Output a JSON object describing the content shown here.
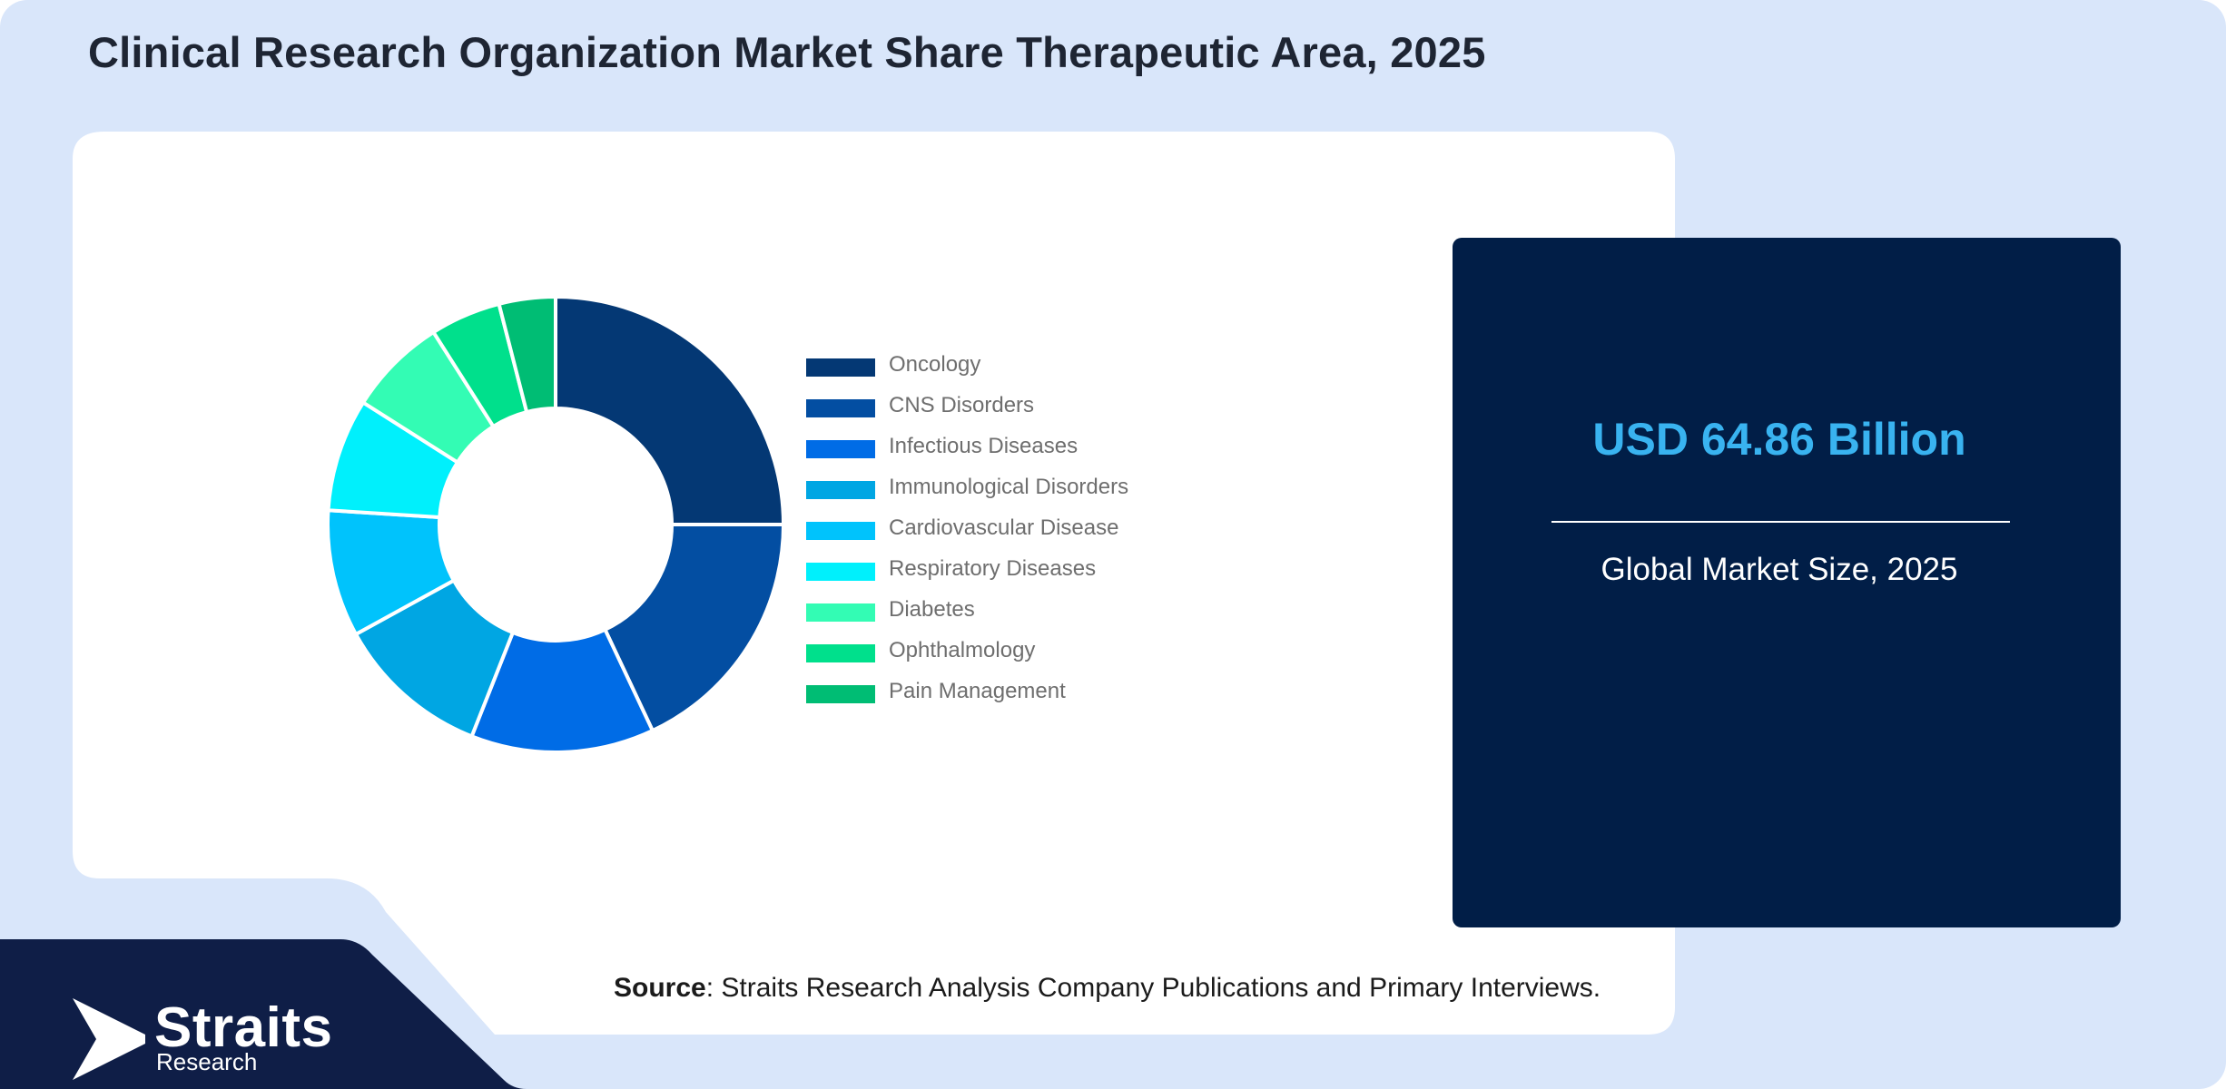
{
  "title": "Clinical Research Organization Market Share Therapeutic Area, 2025",
  "market": {
    "value": "USD 64.86 Billion",
    "caption": "Global Market Size, 2025"
  },
  "source": {
    "label": "Source",
    "text": ": Straits Research Analysis Company Publications and Primary Interviews."
  },
  "brand": {
    "name": "Straits",
    "sub": "Research"
  },
  "colors": {
    "page_background": "#d9e6fa",
    "panel": "#ffffff",
    "market_box": "#011e47",
    "footer": "#0f1e47",
    "accent_value": "#39b3f0"
  },
  "chart_data": {
    "type": "pie",
    "style": "donut",
    "legend_position": "right",
    "categories": [
      "Oncology",
      "CNS Disorders",
      "Infectious Diseases",
      "Immunological Disorders",
      "Cardiovascular Disease",
      "Respiratory Diseases",
      "Diabetes",
      "Ophthalmology",
      "Pain Management"
    ],
    "values": [
      25,
      18,
      13,
      11,
      9,
      8,
      7,
      5,
      4
    ],
    "colors": [
      "#043874",
      "#034ea2",
      "#006ce6",
      "#00a6e3",
      "#00c3fc",
      "#00f0fc",
      "#33fcb4",
      "#00e08c",
      "#00bd74"
    ]
  }
}
